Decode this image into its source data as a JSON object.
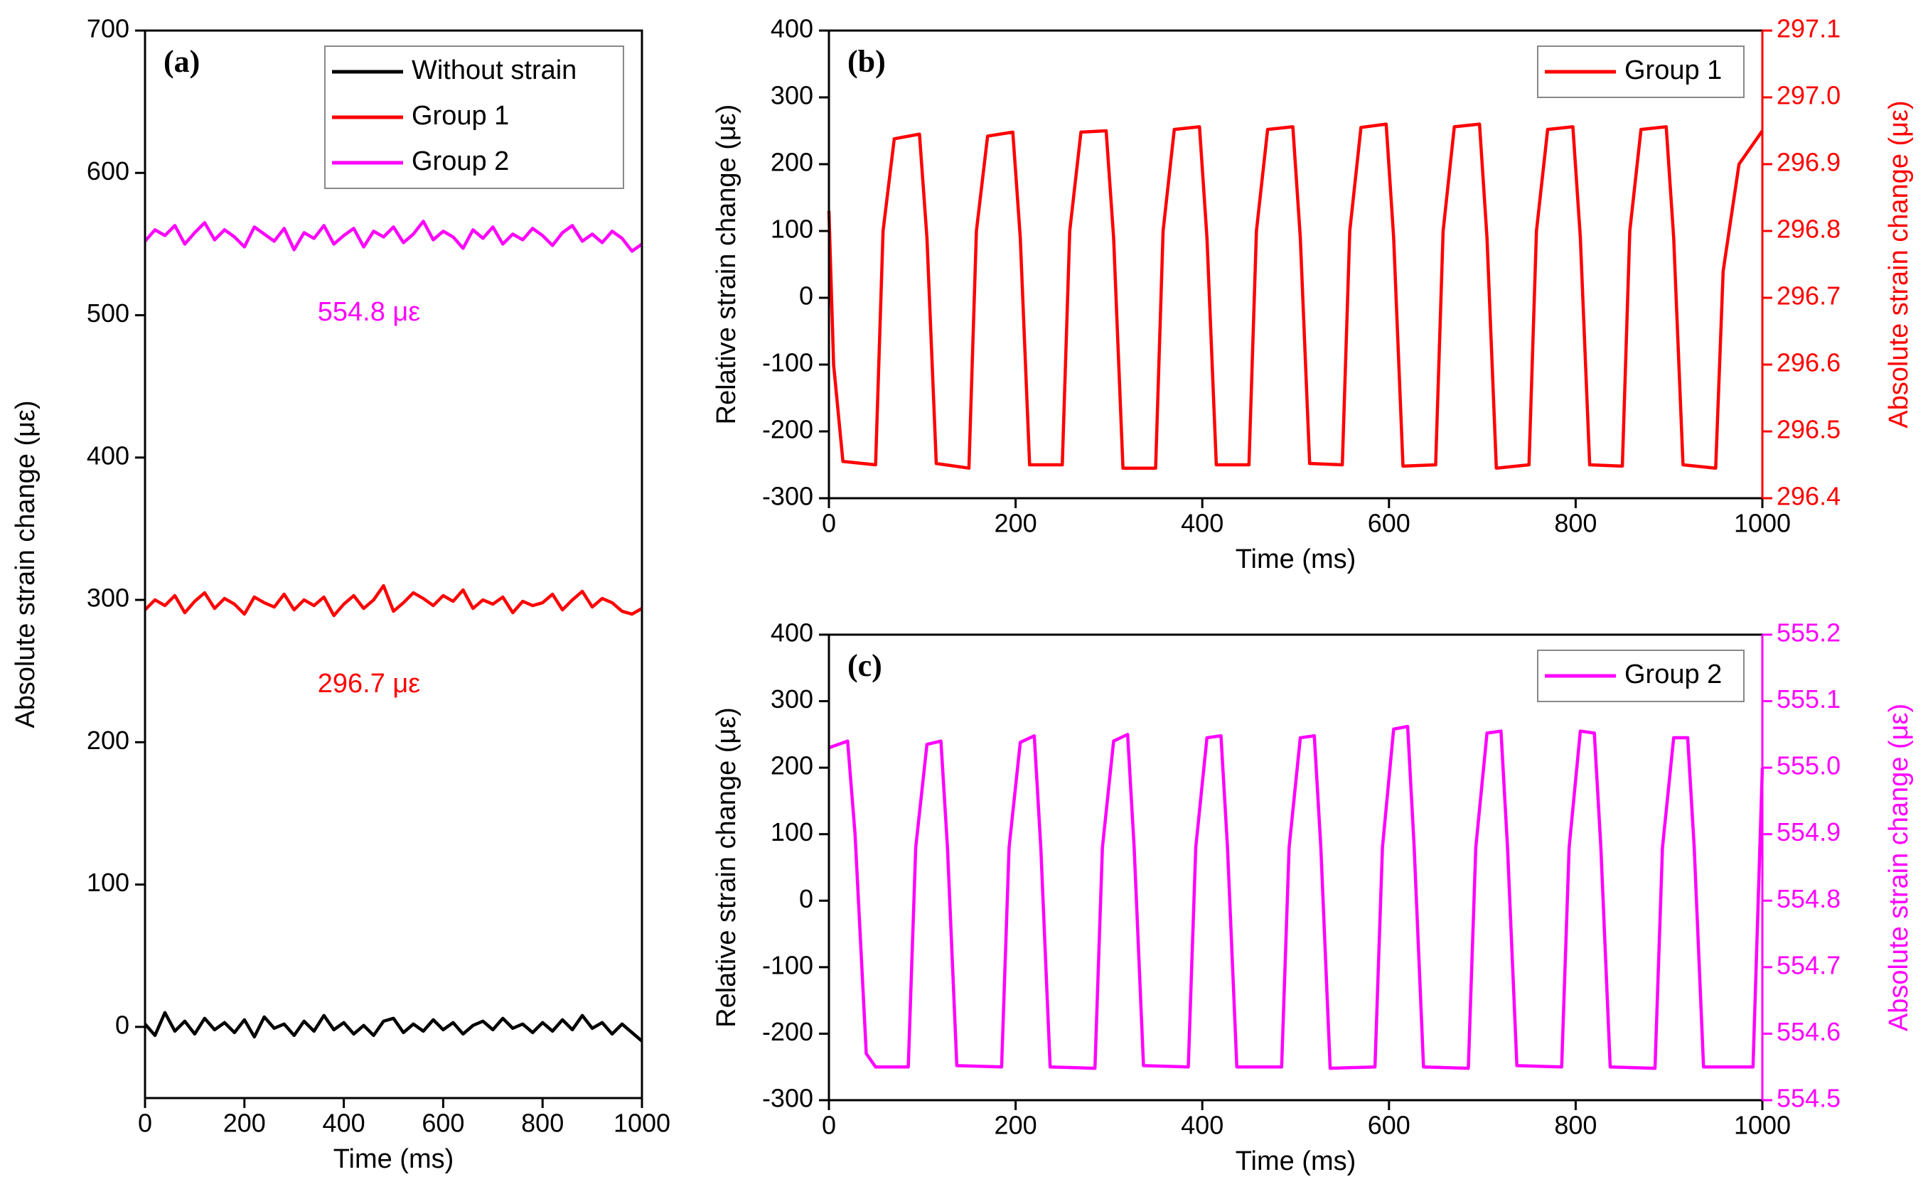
{
  "chart_data": [
    {
      "type": "line",
      "panel_label": "(a)",
      "xlabel": "Time (ms)",
      "ylabel": "Absolute strain change (με)",
      "x": [
        0,
        20,
        40,
        60,
        80,
        100,
        120,
        140,
        160,
        180,
        200,
        220,
        240,
        260,
        280,
        300,
        320,
        340,
        360,
        380,
        400,
        420,
        440,
        460,
        480,
        500,
        520,
        540,
        560,
        580,
        600,
        620,
        640,
        660,
        680,
        700,
        720,
        740,
        760,
        780,
        800,
        820,
        840,
        860,
        880,
        900,
        920,
        940,
        960,
        980,
        1000
      ],
      "series": [
        {
          "name": "Without strain",
          "color": "#000000",
          "values": [
            2,
            -6,
            10,
            -3,
            4,
            -5,
            6,
            -2,
            3,
            -4,
            5,
            -7,
            7,
            -1,
            2,
            -6,
            4,
            -3,
            8,
            -2,
            3,
            -5,
            1,
            -6,
            4,
            6,
            -4,
            2,
            -3,
            5,
            -2,
            3,
            -5,
            1,
            4,
            -2,
            6,
            -1,
            2,
            -4,
            3,
            -3,
            5,
            -2,
            8,
            -1,
            3,
            -5,
            2,
            -4,
            -10
          ]
        },
        {
          "name": "Group 1",
          "color": "#ff0000",
          "values": [
            293,
            300,
            296,
            303,
            291,
            299,
            305,
            294,
            301,
            297,
            290,
            302,
            298,
            295,
            304,
            293,
            300,
            296,
            302,
            289,
            297,
            303,
            294,
            300,
            310,
            292,
            298,
            305,
            301,
            296,
            303,
            299,
            307,
            294,
            300,
            297,
            302,
            291,
            299,
            296,
            298,
            304,
            293,
            300,
            306,
            295,
            301,
            298,
            292,
            290,
            294
          ]
        },
        {
          "name": "Group 2",
          "color": "#ff00ff",
          "values": [
            552,
            560,
            556,
            563,
            550,
            558,
            565,
            553,
            560,
            555,
            548,
            562,
            557,
            552,
            561,
            546,
            558,
            554,
            563,
            550,
            556,
            561,
            548,
            559,
            555,
            562,
            551,
            557,
            566,
            553,
            559,
            555,
            547,
            560,
            554,
            562,
            550,
            557,
            553,
            561,
            556,
            549,
            558,
            563,
            552,
            557,
            551,
            559,
            554,
            545,
            550
          ]
        }
      ],
      "annotations": [
        "296.7 με",
        "554.8 με"
      ],
      "xlim": [
        0,
        1000
      ],
      "ylim": [
        -50,
        700
      ],
      "xticks": [
        0,
        200,
        400,
        600,
        800,
        1000
      ],
      "yticks": [
        0,
        100,
        200,
        300,
        400,
        500,
        600,
        700
      ],
      "legend": "upper right"
    },
    {
      "type": "line",
      "panel_label": "(b)",
      "xlabel": "Time (ms)",
      "ylabel": "Relative strain change (με)",
      "y2label": "Absolute strain change (με)",
      "x": [
        0,
        5,
        15,
        50,
        58,
        70,
        97,
        105,
        115,
        150,
        158,
        170,
        197,
        205,
        215,
        250,
        258,
        270,
        297,
        305,
        315,
        350,
        358,
        370,
        397,
        405,
        415,
        450,
        458,
        470,
        497,
        505,
        515,
        550,
        558,
        570,
        597,
        605,
        615,
        650,
        658,
        670,
        697,
        705,
        715,
        750,
        758,
        770,
        797,
        805,
        815,
        850,
        858,
        870,
        897,
        905,
        915,
        950,
        958,
        975,
        1000
      ],
      "series": [
        {
          "name": "Group 1",
          "color": "#ff0000",
          "values": [
            130,
            -100,
            -245,
            -250,
            100,
            238,
            245,
            90,
            -248,
            -255,
            100,
            242,
            248,
            90,
            -250,
            -250,
            100,
            248,
            250,
            90,
            -255,
            -255,
            100,
            252,
            256,
            90,
            -250,
            -250,
            100,
            252,
            256,
            90,
            -248,
            -250,
            100,
            255,
            260,
            90,
            -252,
            -250,
            100,
            256,
            260,
            90,
            -255,
            -250,
            100,
            252,
            256,
            90,
            -250,
            -252,
            100,
            252,
            256,
            90,
            -250,
            -255,
            40,
            200,
            250
          ]
        }
      ],
      "xlim": [
        0,
        1000
      ],
      "ylim": [
        -300,
        400
      ],
      "xticks": [
        0,
        200,
        400,
        600,
        800,
        1000
      ],
      "yticks": [
        -300,
        -200,
        -100,
        0,
        100,
        200,
        300,
        400
      ],
      "y2lim": [
        296.4,
        297.1
      ],
      "y2ticks": [
        296.4,
        296.5,
        296.6,
        296.7,
        296.8,
        296.9,
        {
          "value": 297,
          "label": "297.0"
        },
        297.1
      ],
      "legend": "upper right"
    },
    {
      "type": "line",
      "panel_label": "(c)",
      "xlabel": "Time (ms)",
      "ylabel": "Relative strain change (με)",
      "y2label": "Absolute strain change (με)",
      "x": [
        0,
        20,
        28,
        40,
        50,
        85,
        93,
        105,
        120,
        127,
        137,
        185,
        193,
        205,
        220,
        227,
        237,
        285,
        293,
        305,
        320,
        327,
        337,
        385,
        393,
        405,
        420,
        427,
        437,
        485,
        493,
        505,
        520,
        527,
        537,
        585,
        593,
        605,
        620,
        627,
        637,
        685,
        693,
        705,
        720,
        727,
        737,
        785,
        793,
        805,
        820,
        827,
        837,
        885,
        893,
        905,
        920,
        927,
        937,
        990,
        1000
      ],
      "series": [
        {
          "name": "Group 2",
          "color": "#ff00ff",
          "values": [
            230,
            240,
            100,
            -230,
            -250,
            -250,
            80,
            235,
            240,
            80,
            -248,
            -250,
            80,
            238,
            248,
            80,
            -250,
            -252,
            80,
            240,
            250,
            80,
            -248,
            -250,
            80,
            245,
            248,
            80,
            -250,
            -250,
            80,
            245,
            248,
            80,
            -252,
            -250,
            80,
            258,
            262,
            80,
            -250,
            -252,
            80,
            252,
            255,
            80,
            -248,
            -250,
            80,
            255,
            252,
            80,
            -250,
            -252,
            80,
            245,
            245,
            80,
            -250,
            -250,
            200
          ]
        }
      ],
      "xlim": [
        0,
        1000
      ],
      "ylim": [
        -300,
        400
      ],
      "xticks": [
        0,
        200,
        400,
        600,
        800,
        1000
      ],
      "yticks": [
        -300,
        -200,
        -100,
        0,
        100,
        200,
        300,
        400
      ],
      "y2lim": [
        554.5,
        555.2
      ],
      "y2ticks": [
        554.5,
        554.6,
        554.7,
        554.8,
        554.9,
        {
          "value": 555,
          "label": "555.0"
        },
        555.1,
        555.2
      ],
      "legend": "upper right"
    }
  ]
}
